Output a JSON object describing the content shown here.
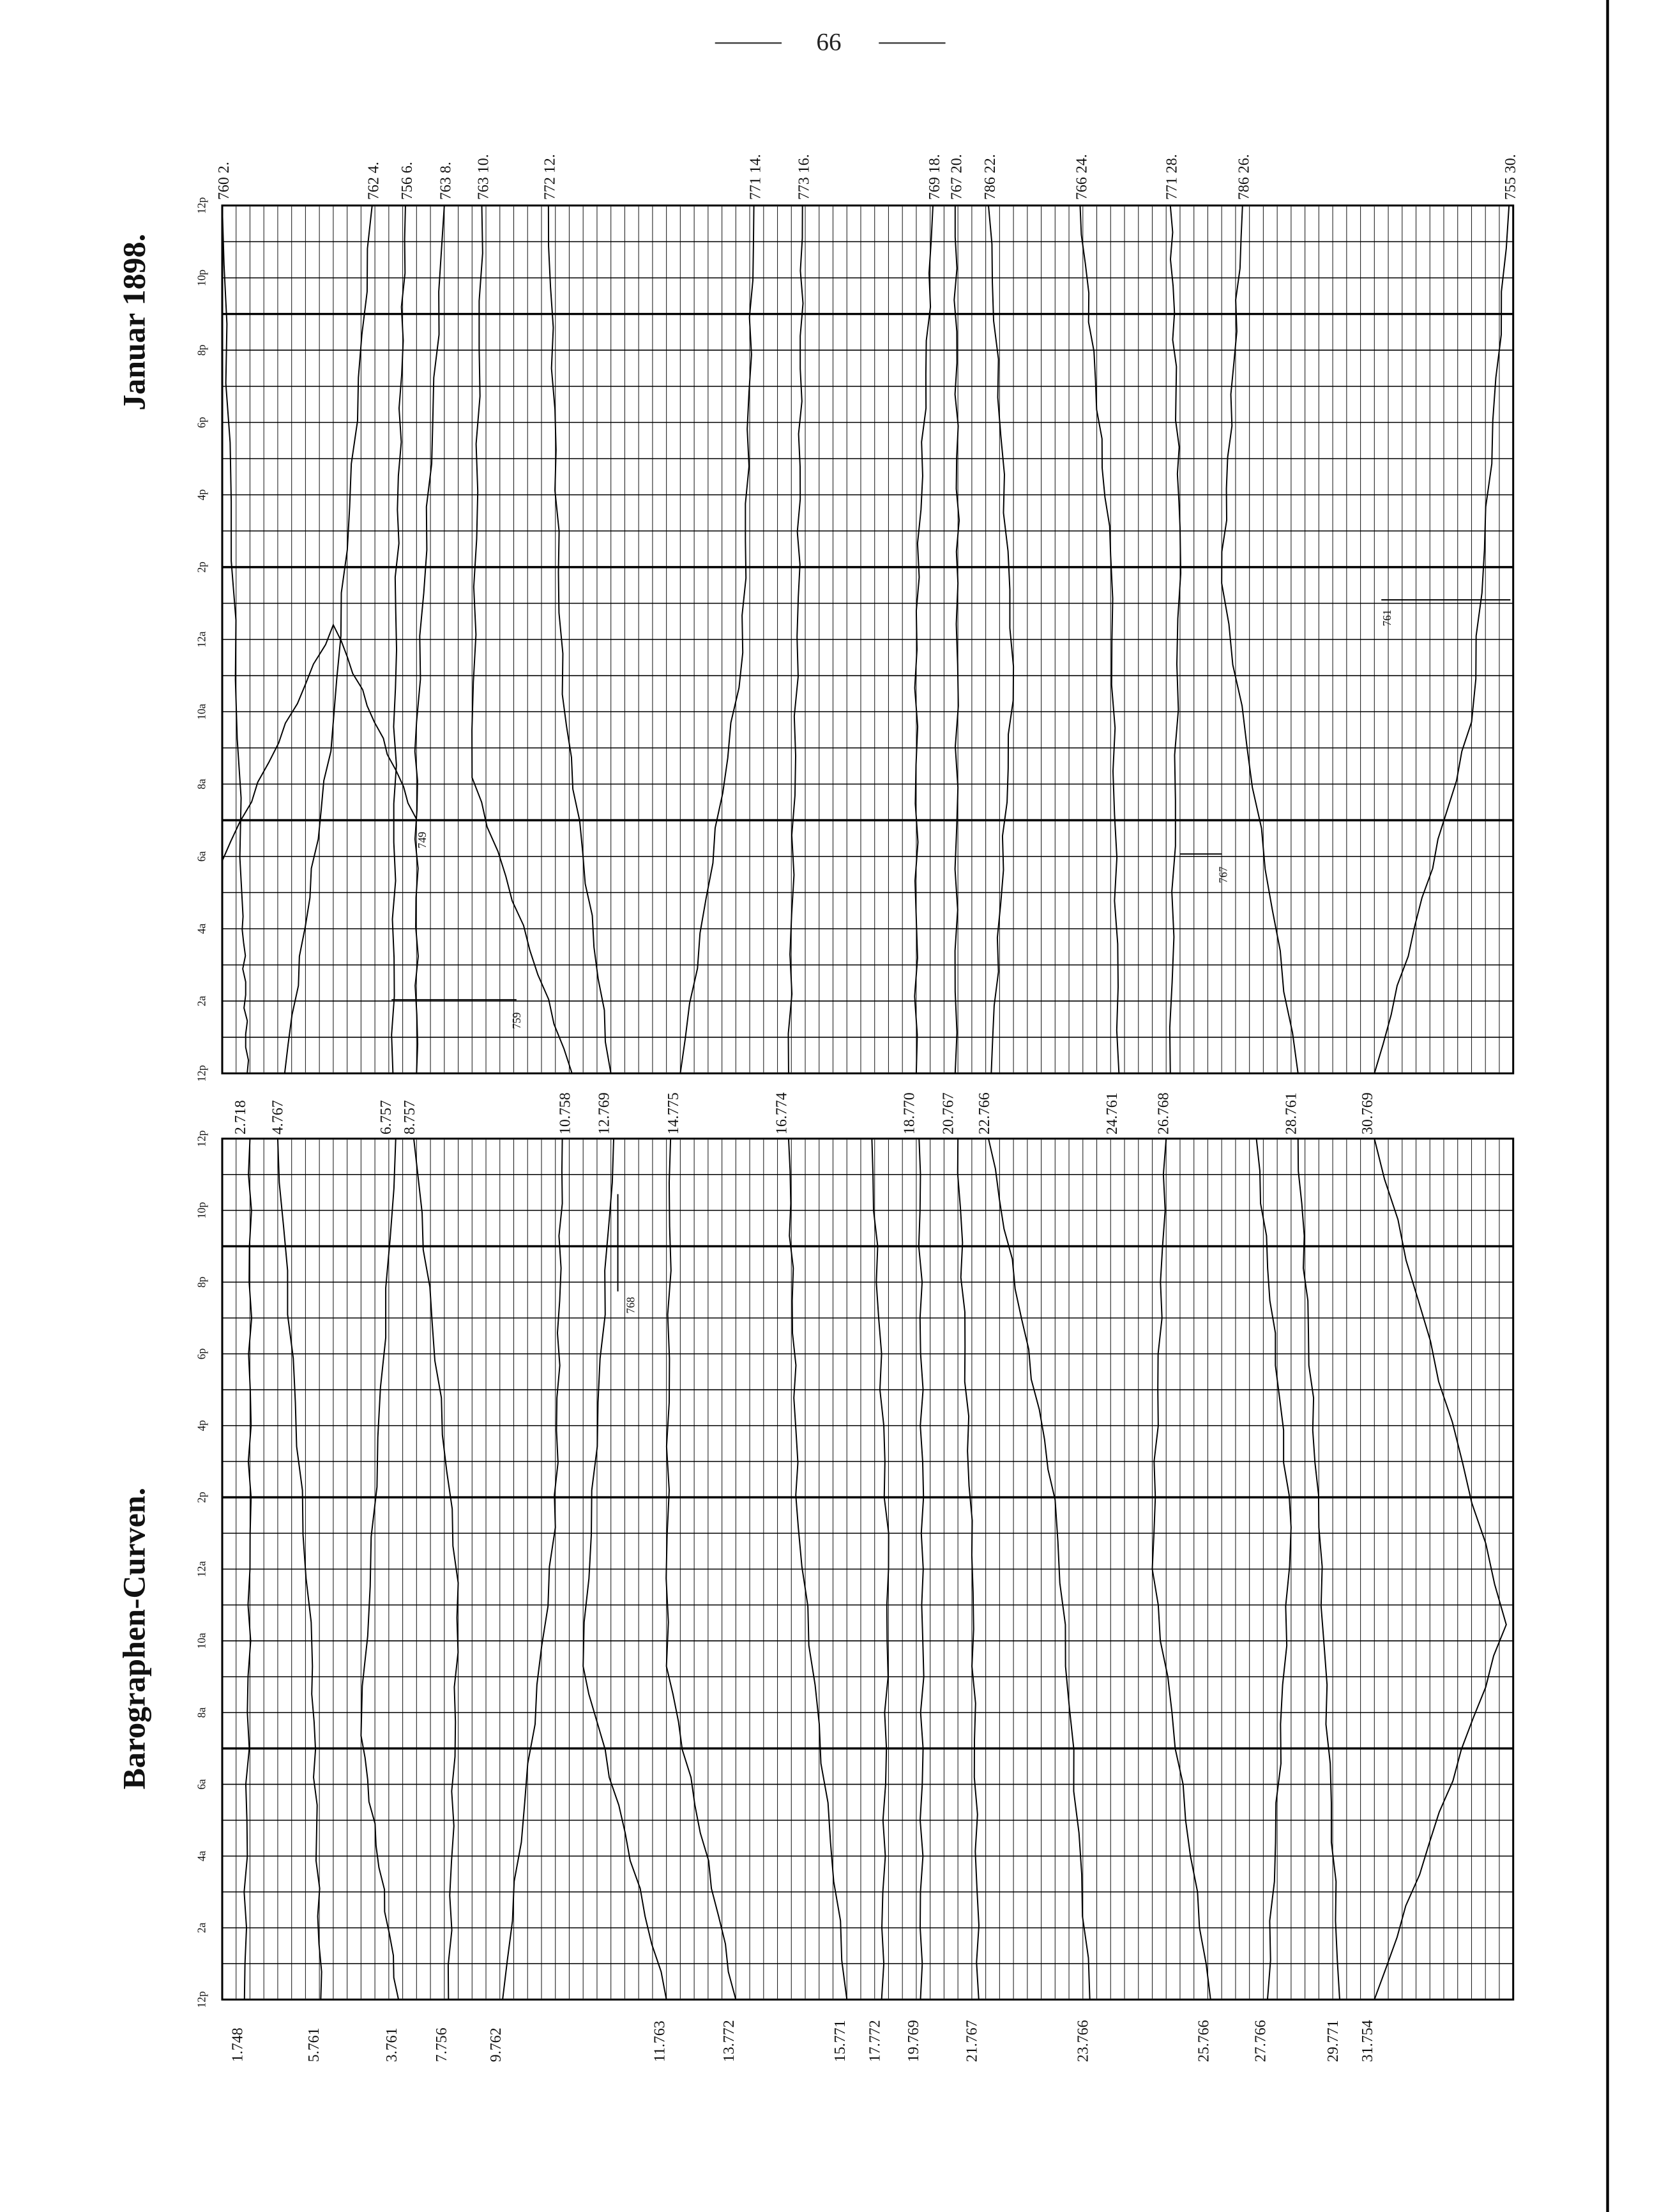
{
  "page_number": "66",
  "titles": [
    "Januar 1898.",
    "Barographen-Curven."
  ],
  "time_labels": [
    "12p",
    "2a",
    "4a",
    "6a",
    "8a",
    "10a",
    "12a",
    "2p",
    "4p",
    "6p",
    "8p",
    "10p",
    "12p"
  ],
  "upper_panel": {
    "start_labels": [
      "2.718",
      "4.767",
      "6.757",
      "8.757",
      "10.758",
      "12.769",
      "14.775",
      "16.774",
      "18.770",
      "20.767",
      "22.766",
      "24.761",
      "26.768",
      "28.761",
      "30.769"
    ],
    "end_labels": [
      "760 2.",
      "762 4.",
      "756 6.",
      "763 8.",
      "763 10.",
      "772 12.",
      "771 14.",
      "773 16.",
      "769 18.",
      "767 20.",
      "786 22.",
      "766 24.",
      "771 28.",
      "786 26.",
      "755 30."
    ],
    "inner_labels": [
      "749",
      "759",
      "767",
      "761"
    ]
  },
  "lower_panel": {
    "start_labels": [
      "1.748",
      "5.761",
      "3.761",
      "7.756",
      "9.762",
      "11.763",
      "13.772",
      "15.771",
      "17.772",
      "19.769",
      "21.767",
      "23.766",
      "25.766",
      "27.766",
      "29.771",
      "31.754"
    ],
    "inner_labels": [
      "768"
    ]
  }
}
